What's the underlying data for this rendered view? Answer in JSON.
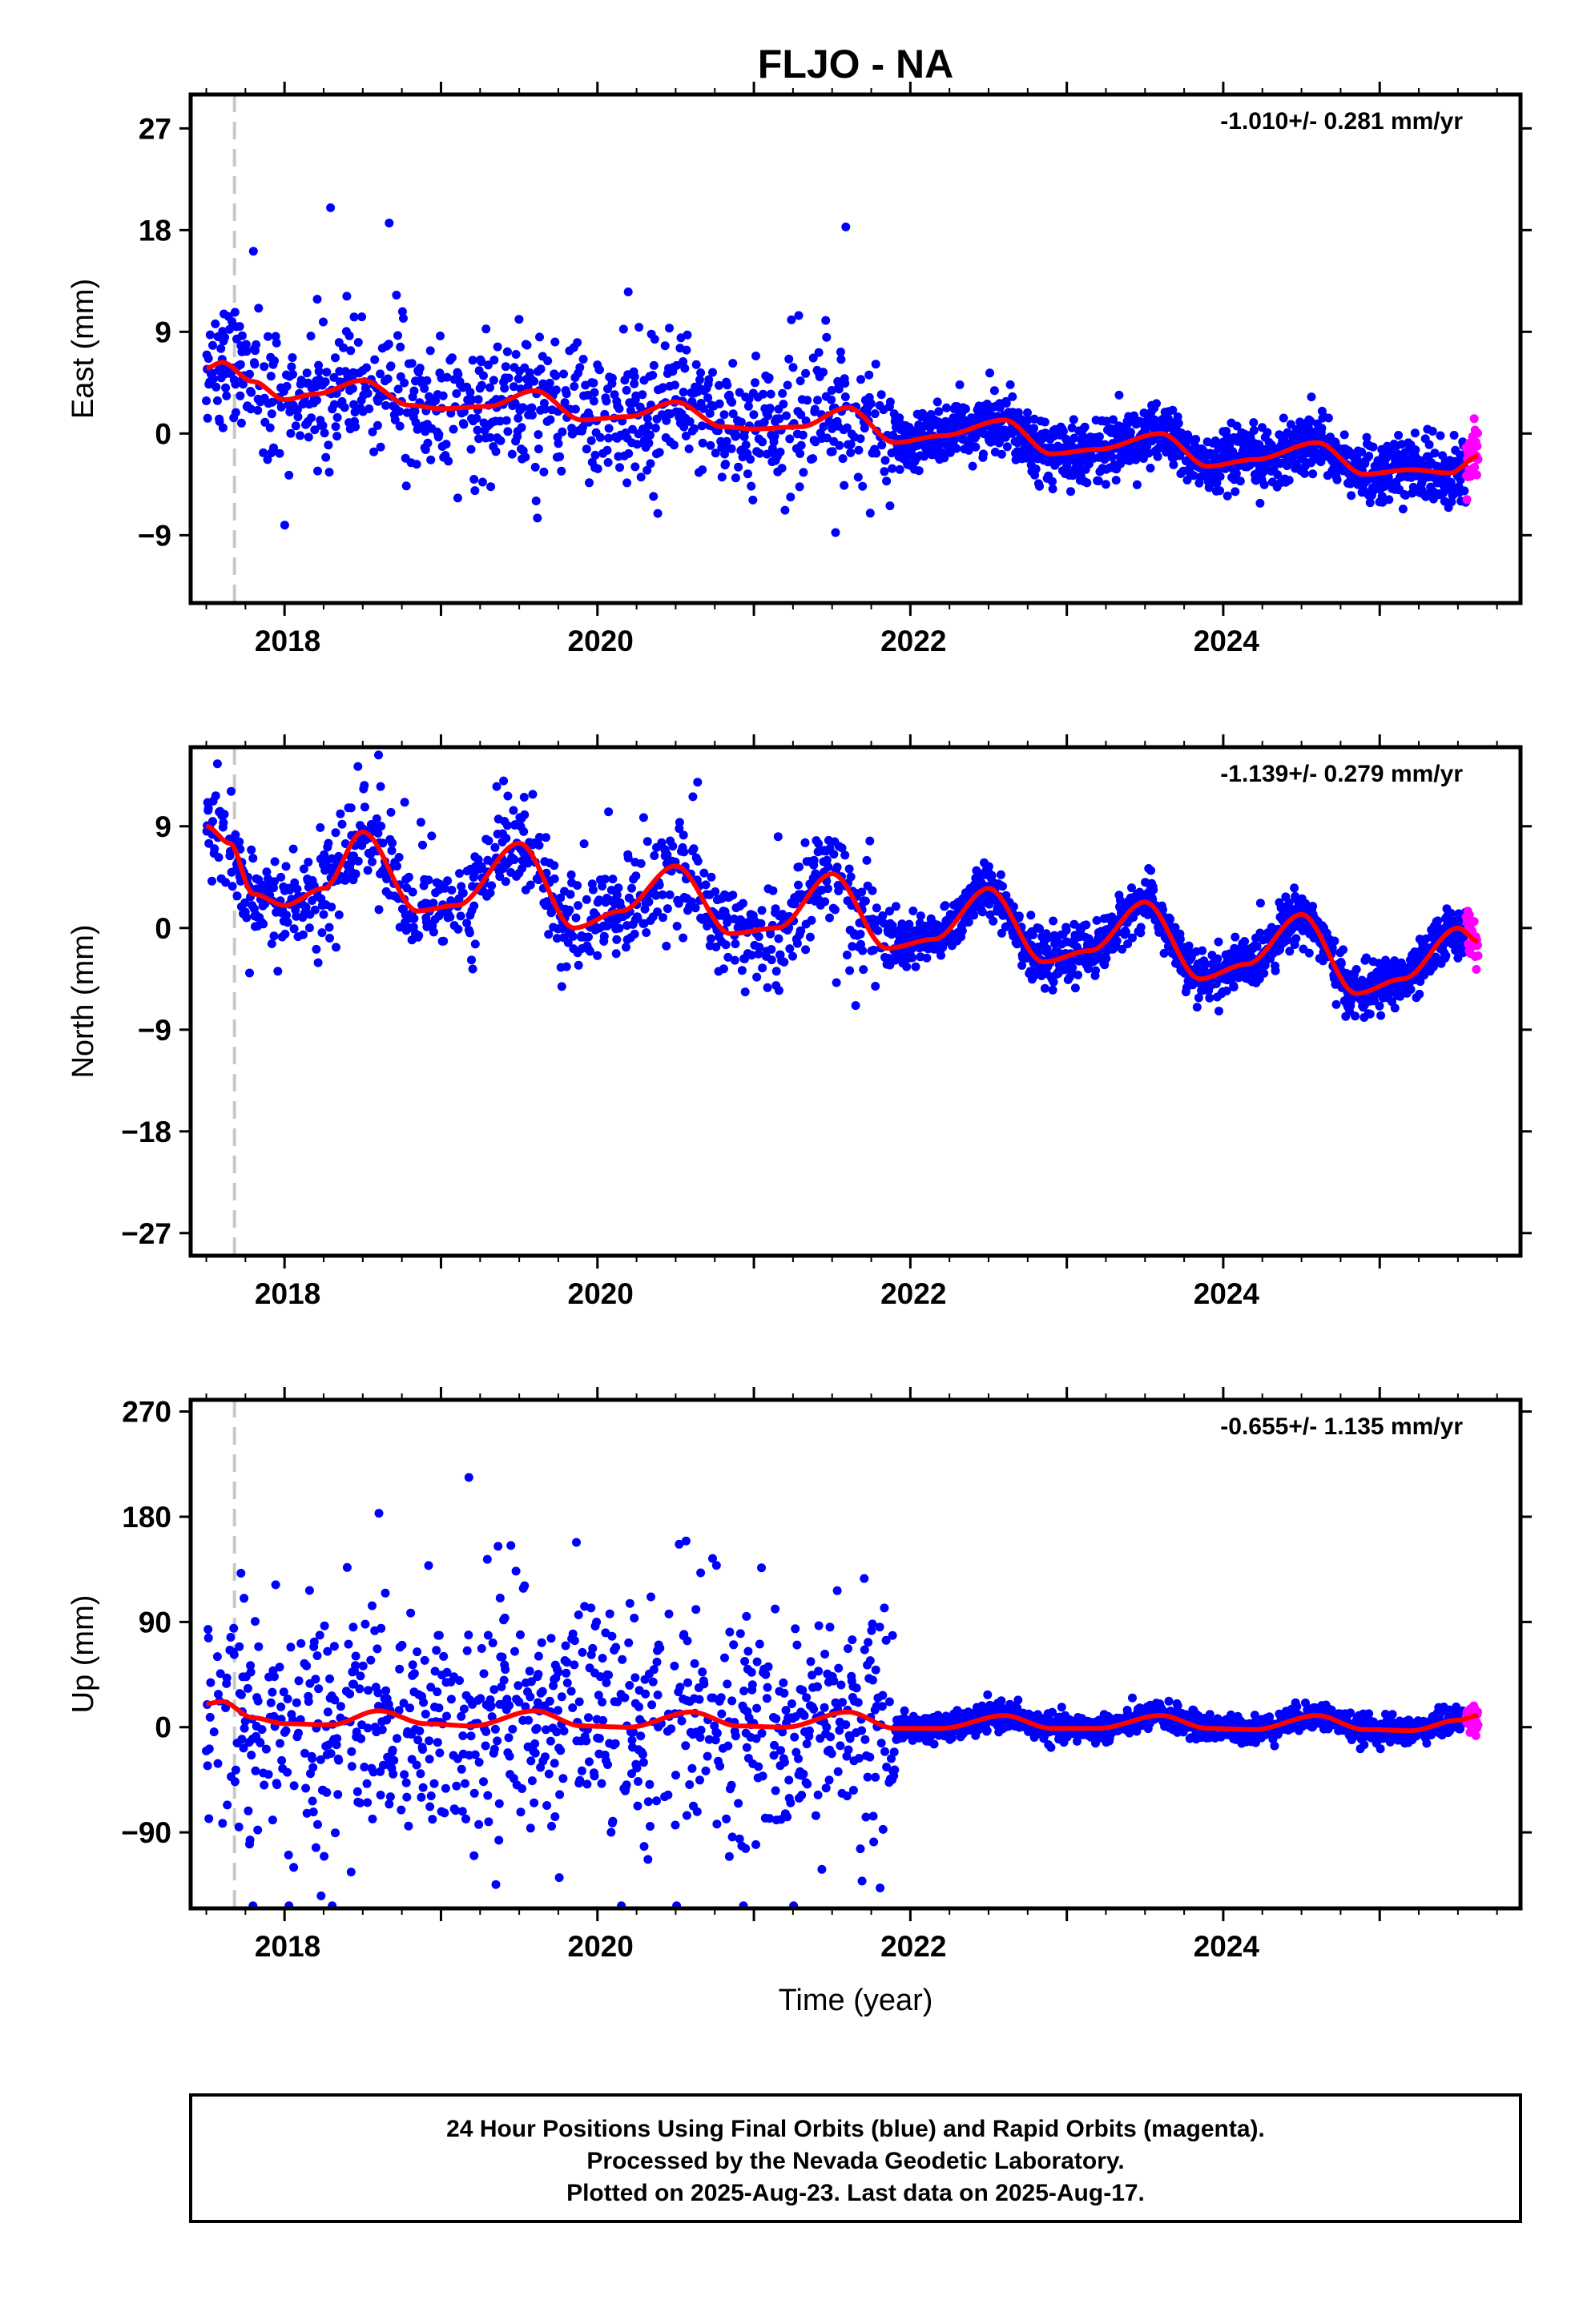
{
  "title": "FLJO - NA",
  "xlabel": "Time (year)",
  "x_ticks": [
    2018,
    2020,
    2022,
    2024
  ],
  "footer": {
    "line1": "24 Hour Positions Using Final Orbits (blue) and Rapid Orbits (magenta).",
    "line2": "Processed by the Nevada Geodetic Laboratory.",
    "line3": "Plotted on 2025-Aug-23. Last data on 2025-Aug-17."
  },
  "colors": {
    "final_orbits": "#0000ff",
    "rapid_orbits": "#ff00ff",
    "model_fit": "#ff0000",
    "equipment_change_line": "#c8c8c8"
  },
  "chart_data": [
    {
      "type": "scatter",
      "component": "East",
      "ylabel": "East (mm)",
      "rate_label": "-1.010+/- 0.281 mm/yr",
      "xlim": [
        2017.4,
        2025.9
      ],
      "ylim": [
        -15,
        30
      ],
      "y_ticks": [
        -9,
        0,
        9,
        18,
        27
      ],
      "grid": false,
      "equipment_change_x": 2017.68,
      "data_start": 2017.5,
      "data_end": 2025.63,
      "rapid_start": 2025.55,
      "trend_mm_per_yr": -1.01,
      "annual_amplitude_mm": 1.2,
      "fit_curve": {
        "x": [
          2017.5,
          2017.6,
          2017.8,
          2018.0,
          2018.2,
          2018.5,
          2018.8,
          2019.0,
          2019.3,
          2019.6,
          2019.9,
          2020.2,
          2020.5,
          2020.8,
          2021.0,
          2021.3,
          2021.6,
          2021.9,
          2022.2,
          2022.6,
          2022.9,
          2023.2,
          2023.6,
          2023.9,
          2024.2,
          2024.6,
          2024.9,
          2025.2,
          2025.45,
          2025.63
        ],
        "y": [
          5.8,
          6.3,
          4.6,
          3.0,
          3.5,
          4.7,
          2.5,
          2.2,
          2.4,
          3.8,
          1.2,
          1.5,
          2.8,
          0.6,
          0.4,
          0.6,
          2.3,
          -0.8,
          -0.2,
          1.2,
          -1.8,
          -1.4,
          0.0,
          -2.9,
          -2.3,
          -0.8,
          -3.6,
          -3.2,
          -3.5,
          -2.0
        ]
      },
      "scatter": "Daily GPS position estimates: final orbits (blue) 2017.5–2025.55, rapid orbits (magenta) to 2025.63; scatter decreases markedly after 2021.9."
    },
    {
      "type": "scatter",
      "component": "North",
      "ylabel": "North (mm)",
      "rate_label": "-1.139+/- 0.279 mm/yr",
      "xlim": [
        2017.4,
        2025.9
      ],
      "ylim": [
        -29,
        16
      ],
      "y_ticks": [
        -27,
        -18,
        -9,
        0,
        9
      ],
      "grid": false,
      "equipment_change_x": 2017.68,
      "data_start": 2017.5,
      "data_end": 2025.63,
      "rapid_start": 2025.55,
      "trend_mm_per_yr": -1.139,
      "annual_amplitude_mm": 3.2,
      "fit_curve": {
        "x": [
          2017.5,
          2017.65,
          2017.8,
          2018.0,
          2018.25,
          2018.5,
          2018.85,
          2019.1,
          2019.5,
          2019.85,
          2020.15,
          2020.5,
          2020.85,
          2021.15,
          2021.5,
          2021.85,
          2022.15,
          2022.5,
          2022.85,
          2023.15,
          2023.5,
          2023.85,
          2024.15,
          2024.5,
          2024.85,
          2025.15,
          2025.5,
          2025.63
        ],
        "y": [
          9.0,
          7.5,
          3.0,
          2.0,
          3.5,
          8.5,
          1.5,
          2.0,
          7.5,
          0.0,
          1.5,
          5.5,
          -0.5,
          0.0,
          4.8,
          -1.8,
          -1.0,
          3.5,
          -3.0,
          -2.0,
          2.3,
          -4.5,
          -3.2,
          1.2,
          -5.8,
          -4.5,
          0.0,
          -1.2
        ]
      },
      "scatter": "Daily GPS position estimates with strong annual oscillation; final orbits (blue), rapid orbits (magenta) at end."
    },
    {
      "type": "scatter",
      "component": "Up",
      "ylabel": "Up (mm)",
      "rate_label": "-0.655+/- 1.135 mm/yr",
      "xlim": [
        2017.4,
        2025.9
      ],
      "ylim": [
        -155,
        280
      ],
      "y_ticks": [
        -90,
        0,
        90,
        180,
        270
      ],
      "grid": false,
      "equipment_change_x": 2017.68,
      "data_start": 2017.5,
      "data_end": 2025.63,
      "rapid_start": 2025.55,
      "trend_mm_per_yr": -0.655,
      "annual_amplitude_mm": 6,
      "fit_curve": {
        "x": [
          2017.5,
          2017.6,
          2017.8,
          2018.0,
          2018.3,
          2018.6,
          2018.9,
          2019.2,
          2019.6,
          2019.9,
          2020.2,
          2020.6,
          2020.9,
          2021.2,
          2021.6,
          2021.9,
          2022.2,
          2022.6,
          2022.9,
          2023.2,
          2023.6,
          2023.9,
          2024.2,
          2024.6,
          2024.9,
          2025.2,
          2025.5,
          2025.63
        ],
        "y": [
          20,
          22,
          8,
          3,
          2,
          14,
          3,
          1,
          14,
          1,
          0,
          13,
          1,
          0,
          13,
          -1,
          -1,
          10,
          -1,
          -1,
          10,
          -1,
          -2,
          10,
          -2,
          -3,
          6,
          10
        ]
      },
      "scatter": "Daily GPS position estimates; very large scatter (±150 mm) before 2022, tight (±20 mm) after 2022."
    }
  ]
}
